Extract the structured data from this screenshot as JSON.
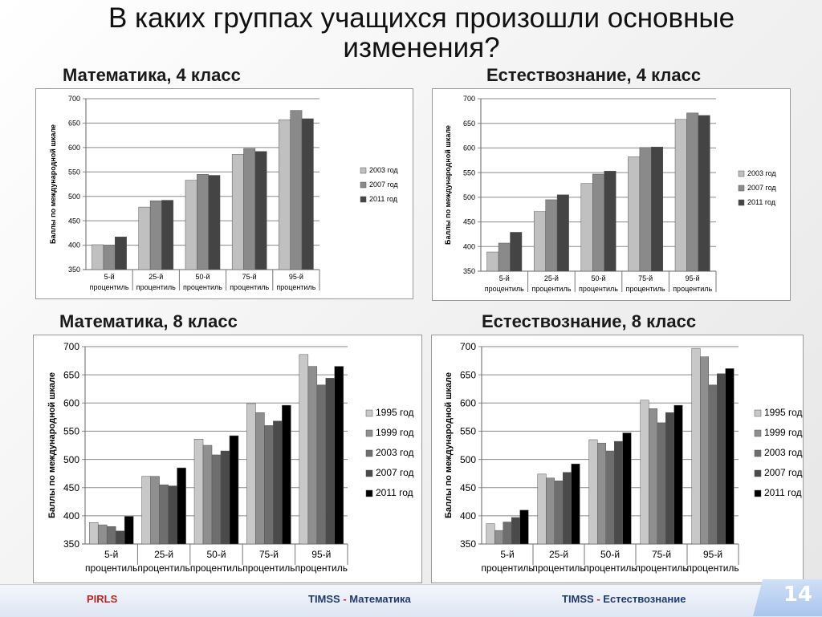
{
  "title": {
    "line1": "В   каких группах учащихся произошли основные",
    "line2": "изменения?"
  },
  "footer": {
    "pirls": "PIRLS",
    "math_prefix": "TIMSS",
    "math_sep": " - ",
    "math_label": "Математика",
    "sci_prefix": "TIMSS",
    "sci_sep": " - ",
    "sci_label": "Естествознание"
  },
  "page_number": "14",
  "colors": {
    "1995 год": "#c8c8c8",
    "1999 год": "#8f8f8f",
    "2003 год": "#6e6e6e",
    "2007 год": "#4a4a4a",
    "2011 год": "#000000",
    "small_2003": "#c0c0c0",
    "small_2007": "#8a8a8a",
    "small_2011": "#444444"
  },
  "chart_data": [
    {
      "heading": "Математика, 4 класс",
      "type": "bar",
      "ylabel": "Баллы по международной шкале",
      "ylim": [
        350,
        700
      ],
      "yticks": [
        350,
        400,
        450,
        500,
        550,
        600,
        650,
        700
      ],
      "categories": [
        [
          "5-й",
          "процентиль"
        ],
        [
          "25-й",
          "процентиль"
        ],
        [
          "50-й",
          "процентиль"
        ],
        [
          "75-й",
          "процентиль"
        ],
        [
          "95-й",
          "процентиль"
        ]
      ],
      "legend_position": "right",
      "series": [
        {
          "name": "2003 год",
          "color": "#c0c0c0",
          "values": [
            401,
            478,
            533,
            586,
            657
          ]
        },
        {
          "name": "2007 год",
          "color": "#8a8a8a",
          "values": [
            400,
            491,
            545,
            598,
            676
          ]
        },
        {
          "name": "2011 год",
          "color": "#444444",
          "values": [
            417,
            492,
            543,
            592,
            659
          ]
        }
      ]
    },
    {
      "heading": "Естествознание, 4 класс",
      "type": "bar",
      "ylabel": "Баллы по международной шкале",
      "ylim": [
        350,
        700
      ],
      "yticks": [
        350,
        400,
        450,
        500,
        550,
        600,
        650,
        700
      ],
      "categories": [
        [
          "5-й",
          "процентиль"
        ],
        [
          "25-й",
          "процентиль"
        ],
        [
          "50-й",
          "процентиль"
        ],
        [
          "75-й",
          "процентиль"
        ],
        [
          "95-й",
          "процентиль"
        ]
      ],
      "legend_position": "right",
      "series": [
        {
          "name": "2003 год",
          "color": "#c0c0c0",
          "values": [
            389,
            471,
            528,
            582,
            658
          ]
        },
        {
          "name": "2007 год",
          "color": "#8a8a8a",
          "values": [
            407,
            495,
            547,
            601,
            671
          ]
        },
        {
          "name": "2011 год",
          "color": "#444444",
          "values": [
            429,
            505,
            553,
            602,
            666
          ]
        }
      ]
    },
    {
      "heading": "Математика, 8 класс",
      "type": "bar",
      "ylabel": "Баллы по международной шкале",
      "ylim": [
        350,
        700
      ],
      "yticks": [
        350,
        400,
        450,
        500,
        550,
        600,
        650,
        700
      ],
      "categories": [
        [
          "5-й",
          "процентиль"
        ],
        [
          "25-й",
          "процентиль"
        ],
        [
          "50-й",
          "процентиль"
        ],
        [
          "75-й",
          "процентиль"
        ],
        [
          "95-й",
          "процентиль"
        ]
      ],
      "legend_position": "right",
      "series": [
        {
          "name": "1995 год",
          "color": "#c8c8c8",
          "values": [
            388,
            470,
            536,
            599,
            686
          ]
        },
        {
          "name": "1999 год",
          "color": "#8f8f8f",
          "values": [
            384,
            470,
            525,
            583,
            665
          ]
        },
        {
          "name": "2003 год",
          "color": "#6e6e6e",
          "values": [
            381,
            455,
            508,
            560,
            632
          ]
        },
        {
          "name": "2007 год",
          "color": "#4a4a4a",
          "values": [
            373,
            453,
            515,
            568,
            644
          ]
        },
        {
          "name": "2011 год",
          "color": "#000000",
          "values": [
            399,
            485,
            542,
            596,
            665
          ]
        }
      ]
    },
    {
      "heading": "Естествознание, 8 класс",
      "type": "bar",
      "ylabel": "Баллы по международной шкале",
      "ylim": [
        350,
        700
      ],
      "yticks": [
        350,
        400,
        450,
        500,
        550,
        600,
        650,
        700
      ],
      "categories": [
        [
          "5-й",
          "процентиль"
        ],
        [
          "25-й",
          "процентиль"
        ],
        [
          "50-й",
          "процентиль"
        ],
        [
          "75-й",
          "процентиль"
        ],
        [
          "95-й",
          "процентиль"
        ]
      ],
      "legend_position": "right",
      "series": [
        {
          "name": "1995 год",
          "color": "#c8c8c8",
          "values": [
            386,
            474,
            535,
            605,
            697
          ]
        },
        {
          "name": "1999 год",
          "color": "#8f8f8f",
          "values": [
            374,
            467,
            529,
            590,
            682
          ]
        },
        {
          "name": "2003 год",
          "color": "#6e6e6e",
          "values": [
            389,
            462,
            515,
            565,
            632
          ]
        },
        {
          "name": "2007 год",
          "color": "#4a4a4a",
          "values": [
            397,
            477,
            532,
            583,
            652
          ]
        },
        {
          "name": "2011 год",
          "color": "#000000",
          "values": [
            410,
            492,
            547,
            596,
            661
          ]
        }
      ]
    }
  ]
}
